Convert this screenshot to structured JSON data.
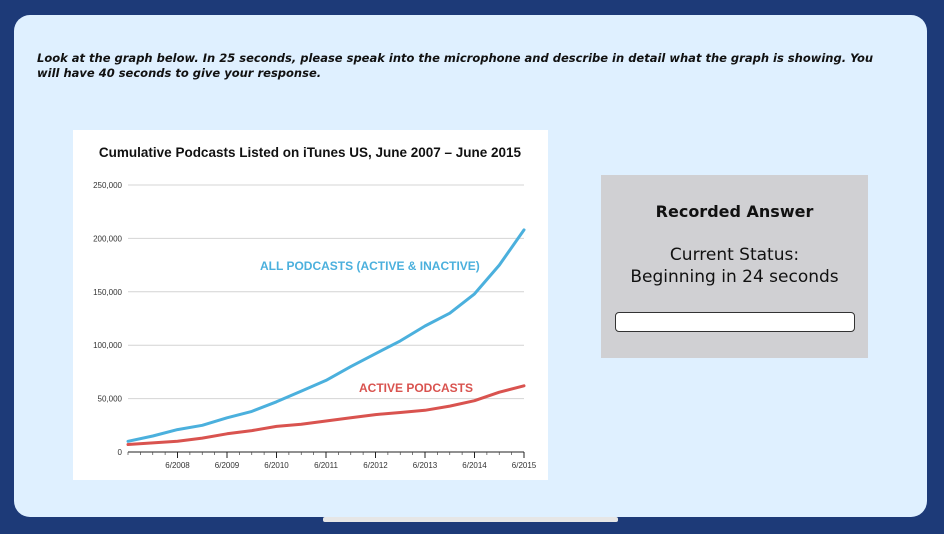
{
  "instructions": "Look at the graph below. In 25 seconds, please speak into the microphone and describe in detail what the graph is showing. You will have 40 seconds to give your response.",
  "recorder": {
    "title": "Recorded Answer",
    "status_label": "Current Status:",
    "status_value": "Beginning in 24 seconds",
    "progress": 0
  },
  "colors": {
    "all": "#4bb0dd",
    "active": "#d9534f",
    "panel": "#dff0ff",
    "frame": "#1d3a78"
  },
  "chart_data": {
    "type": "line",
    "title": "Cumulative Podcasts Listed on iTunes US, June 2007 – June 2015",
    "xlabel": "",
    "ylabel": "",
    "xlim": [
      2007.5,
      2015.5
    ],
    "ylim": [
      0,
      250000
    ],
    "yticks": [
      0,
      50000,
      100000,
      150000,
      200000,
      250000
    ],
    "ytick_labels": [
      "0",
      "50,000",
      "100,000",
      "150,000",
      "200,000",
      "250,000"
    ],
    "xticks": [
      2008.5,
      2009.5,
      2010.5,
      2011.5,
      2012.5,
      2013.5,
      2014.5,
      2015.5
    ],
    "xtick_labels": [
      "6/2008",
      "6/2009",
      "6/2010",
      "6/2011",
      "6/2012",
      "6/2013",
      "6/2014",
      "6/2015"
    ],
    "grid": true,
    "series": [
      {
        "name": "ALL PODCASTS (ACTIVE & INACTIVE)",
        "x": [
          2007.5,
          2008.0,
          2008.5,
          2009.0,
          2009.5,
          2010.0,
          2010.5,
          2011.0,
          2011.5,
          2012.0,
          2012.5,
          2013.0,
          2013.5,
          2014.0,
          2014.5,
          2015.0,
          2015.5
        ],
        "y": [
          10000,
          15000,
          21000,
          25000,
          32000,
          38000,
          47000,
          57000,
          67000,
          80000,
          92000,
          104000,
          118000,
          130000,
          148000,
          175000,
          208000
        ]
      },
      {
        "name": "ACTIVE PODCASTS",
        "x": [
          2007.5,
          2008.0,
          2008.5,
          2009.0,
          2009.5,
          2010.0,
          2010.5,
          2011.0,
          2011.5,
          2012.0,
          2012.5,
          2013.0,
          2013.5,
          2014.0,
          2014.5,
          2015.0,
          2015.5
        ],
        "y": [
          7000,
          8500,
          10000,
          13000,
          17000,
          20000,
          24000,
          26000,
          29000,
          32000,
          35000,
          37000,
          39000,
          43000,
          48000,
          56000,
          62000
        ]
      }
    ]
  }
}
